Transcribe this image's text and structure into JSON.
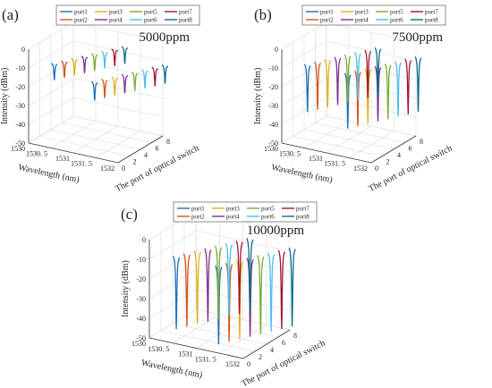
{
  "figure": {
    "legend_entries": [
      "port1",
      "port2",
      "port3",
      "port4",
      "port5",
      "port6",
      "port7",
      "port8"
    ],
    "series_colors": [
      "#1f6fb3",
      "#d95319",
      "#e0b020",
      "#7e2f8e",
      "#77ac30",
      "#4dbeee",
      "#a2142f",
      "#0b6e8a"
    ]
  },
  "chart_data": [
    {
      "type": "line",
      "subtype": "3d-waterfall",
      "panel_label": "(a)",
      "annotation": "5000ppm",
      "xlabel": "Wavelength (nm)",
      "ylabel": "The port of optical switch",
      "zlabel": "Intensity (dBm)",
      "x_ticks": [
        "1530",
        "1530. 5",
        "1531",
        "1531. 5",
        "1532"
      ],
      "y_ticks": [
        "0",
        "2",
        "4",
        "6",
        "8"
      ],
      "z_ticks": [
        "0",
        "-10",
        "-20",
        "-30",
        "-40",
        "-50"
      ],
      "xlim": [
        1530,
        1532
      ],
      "ylim": [
        0,
        8
      ],
      "zlim": [
        -50,
        0
      ],
      "grid": true,
      "legend": "top-center",
      "series": [
        {
          "name": "port1",
          "dips": [
            {
              "x": 1530.45,
              "y": 1,
              "baseline": -7,
              "min": -16
            },
            {
              "x": 1531.35,
              "y": 1,
              "baseline": -12,
              "min": -22
            }
          ]
        },
        {
          "name": "port2",
          "dips": [
            {
              "x": 1530.55,
              "y": 2,
              "baseline": -7,
              "min": -16
            },
            {
              "x": 1531.45,
              "y": 2,
              "baseline": -12,
              "min": -22
            }
          ]
        },
        {
          "name": "port3",
          "dips": [
            {
              "x": 1530.65,
              "y": 3,
              "baseline": -7,
              "min": -16
            },
            {
              "x": 1531.55,
              "y": 3,
              "baseline": -12,
              "min": -22
            }
          ]
        },
        {
          "name": "port4",
          "dips": [
            {
              "x": 1530.75,
              "y": 4,
              "baseline": -7,
              "min": -16
            },
            {
              "x": 1531.65,
              "y": 4,
              "baseline": -12,
              "min": -22
            }
          ]
        },
        {
          "name": "port5",
          "dips": [
            {
              "x": 1530.85,
              "y": 5,
              "baseline": -7,
              "min": -16
            },
            {
              "x": 1531.75,
              "y": 5,
              "baseline": -12,
              "min": -22
            }
          ]
        },
        {
          "name": "port6",
          "dips": [
            {
              "x": 1530.95,
              "y": 6,
              "baseline": -7,
              "min": -16
            },
            {
              "x": 1531.85,
              "y": 6,
              "baseline": -12,
              "min": -22
            }
          ]
        },
        {
          "name": "port7",
          "dips": [
            {
              "x": 1531.05,
              "y": 7,
              "baseline": -7,
              "min": -16
            },
            {
              "x": 1531.95,
              "y": 7,
              "baseline": -12,
              "min": -22
            }
          ]
        },
        {
          "name": "port8",
          "dips": [
            {
              "x": 1531.15,
              "y": 8,
              "baseline": -7,
              "min": -16
            },
            {
              "x": 1532.05,
              "y": 8,
              "baseline": -12,
              "min": -22
            }
          ]
        }
      ]
    },
    {
      "type": "line",
      "subtype": "3d-waterfall",
      "panel_label": "(b)",
      "annotation": "7500ppm",
      "xlabel": "Wavelength (nm)",
      "ylabel": "The port of optical switch",
      "zlabel": "Intensity (dBm)",
      "x_ticks": [
        "1530",
        "1530. 5",
        "1531",
        "1531. 5",
        "1532"
      ],
      "y_ticks": [
        "0",
        "2",
        "4",
        "6",
        "8"
      ],
      "z_ticks": [
        "0",
        "-10",
        "-20",
        "-30",
        "-40",
        "-50"
      ],
      "xlim": [
        1530,
        1532
      ],
      "ylim": [
        0,
        8
      ],
      "zlim": [
        -50,
        0
      ],
      "grid": true,
      "legend": "top-center",
      "series": [
        {
          "name": "port1",
          "dips": [
            {
              "x": 1530.45,
              "y": 1,
              "baseline": -7,
              "min": -33
            },
            {
              "x": 1531.35,
              "y": 1,
              "baseline": -7,
              "min": -37
            }
          ]
        },
        {
          "name": "port2",
          "dips": [
            {
              "x": 1530.55,
              "y": 2,
              "baseline": -7,
              "min": -33
            },
            {
              "x": 1531.45,
              "y": 2,
              "baseline": -7,
              "min": -37
            }
          ]
        },
        {
          "name": "port3",
          "dips": [
            {
              "x": 1530.65,
              "y": 3,
              "baseline": -7,
              "min": -33
            },
            {
              "x": 1531.55,
              "y": 3,
              "baseline": -7,
              "min": -37
            }
          ]
        },
        {
          "name": "port4",
          "dips": [
            {
              "x": 1530.75,
              "y": 4,
              "baseline": -7,
              "min": -33
            },
            {
              "x": 1531.65,
              "y": 4,
              "baseline": -7,
              "min": -37
            }
          ]
        },
        {
          "name": "port5",
          "dips": [
            {
              "x": 1530.85,
              "y": 5,
              "baseline": -7,
              "min": -33
            },
            {
              "x": 1531.75,
              "y": 5,
              "baseline": -7,
              "min": -37
            }
          ]
        },
        {
          "name": "port6",
          "dips": [
            {
              "x": 1530.95,
              "y": 6,
              "baseline": -7,
              "min": -33
            },
            {
              "x": 1531.85,
              "y": 6,
              "baseline": -7,
              "min": -37
            }
          ]
        },
        {
          "name": "port7",
          "dips": [
            {
              "x": 1531.05,
              "y": 7,
              "baseline": -7,
              "min": -33
            },
            {
              "x": 1531.95,
              "y": 7,
              "baseline": -7,
              "min": -37
            }
          ]
        },
        {
          "name": "port8",
          "dips": [
            {
              "x": 1531.15,
              "y": 8,
              "baseline": -7,
              "min": -33
            },
            {
              "x": 1532.05,
              "y": 8,
              "baseline": -7,
              "min": -37
            }
          ]
        }
      ]
    },
    {
      "type": "line",
      "subtype": "3d-waterfall",
      "panel_label": "(c)",
      "annotation": "10000ppm",
      "xlabel": "Wavelength (nm)",
      "ylabel": "The port of optical switch",
      "zlabel": "Intensity (dBm)",
      "x_ticks": [
        "1530",
        "1530. 5",
        "1531",
        "1531. 5",
        "1532"
      ],
      "y_ticks": [
        "0",
        "2",
        "4",
        "6",
        "8"
      ],
      "z_ticks": [
        "0",
        "-10",
        "-20",
        "-30",
        "-40",
        "-50"
      ],
      "xlim": [
        1530,
        1532
      ],
      "ylim": [
        0,
        8
      ],
      "zlim": [
        -50,
        0
      ],
      "grid": true,
      "legend": "top-center",
      "series": [
        {
          "name": "port1",
          "dips": [
            {
              "x": 1530.45,
              "y": 1,
              "baseline": -7,
              "min": -45
            },
            {
              "x": 1531.35,
              "y": 1,
              "baseline": -7,
              "min": -48
            }
          ]
        },
        {
          "name": "port2",
          "dips": [
            {
              "x": 1530.55,
              "y": 2,
              "baseline": -7,
              "min": -45
            },
            {
              "x": 1531.45,
              "y": 2,
              "baseline": -7,
              "min": -48
            }
          ]
        },
        {
          "name": "port3",
          "dips": [
            {
              "x": 1530.65,
              "y": 3,
              "baseline": -7,
              "min": -45
            },
            {
              "x": 1531.55,
              "y": 3,
              "baseline": -7,
              "min": -48
            }
          ]
        },
        {
          "name": "port4",
          "dips": [
            {
              "x": 1530.75,
              "y": 4,
              "baseline": -7,
              "min": -45
            },
            {
              "x": 1531.65,
              "y": 4,
              "baseline": -7,
              "min": -48
            }
          ]
        },
        {
          "name": "port5",
          "dips": [
            {
              "x": 1530.85,
              "y": 5,
              "baseline": -7,
              "min": -45
            },
            {
              "x": 1531.75,
              "y": 5,
              "baseline": -7,
              "min": -48
            }
          ]
        },
        {
          "name": "port6",
          "dips": [
            {
              "x": 1530.95,
              "y": 6,
              "baseline": -7,
              "min": -45
            },
            {
              "x": 1531.85,
              "y": 6,
              "baseline": -7,
              "min": -48
            }
          ]
        },
        {
          "name": "port7",
          "dips": [
            {
              "x": 1531.05,
              "y": 7,
              "baseline": -7,
              "min": -45
            },
            {
              "x": 1531.95,
              "y": 7,
              "baseline": -7,
              "min": -48
            }
          ]
        },
        {
          "name": "port8",
          "dips": [
            {
              "x": 1531.15,
              "y": 8,
              "baseline": -7,
              "min": -45
            },
            {
              "x": 1532.05,
              "y": 8,
              "baseline": -7,
              "min": -48
            }
          ]
        }
      ]
    }
  ]
}
